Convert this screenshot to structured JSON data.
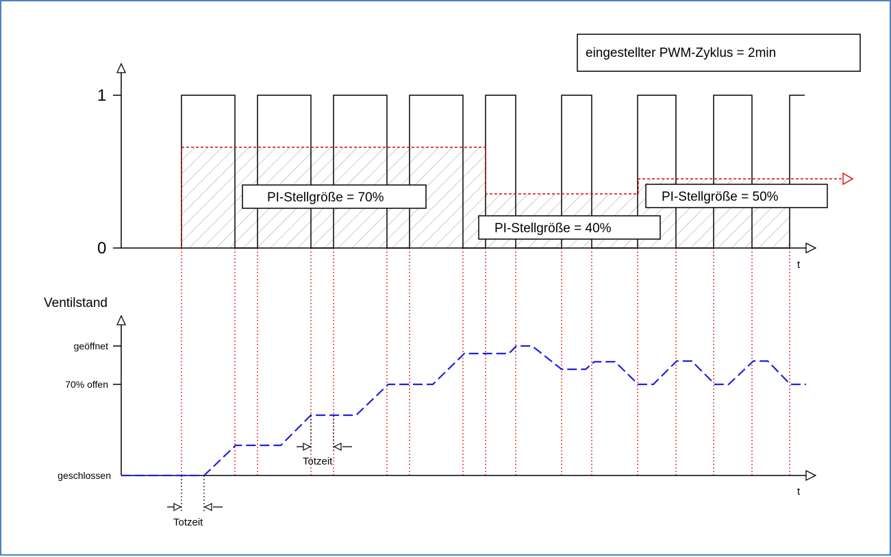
{
  "top_chart": {
    "y_label_1": "1",
    "y_label_0": "0",
    "x_label": "t",
    "setting_label": "eingestellter PWM-Zyklus = 2min",
    "pi_labels": [
      "PI-Stellgröße = 70%",
      "PI-Stellgröße = 40%",
      "PI-Stellgröße = 50%"
    ]
  },
  "bottom_chart": {
    "y_title": "Ventilstand",
    "y_ticks": [
      "geöffnet",
      "70% offen",
      "geschlossen"
    ],
    "x_label": "t",
    "dead_time_labels": [
      "Totzeit",
      "Totzeit"
    ]
  },
  "chart_data": {
    "type": "diagram",
    "pwm_cycle": "2min",
    "segments": [
      {
        "label": "PI-Stellgröße = 70%",
        "duty": 0.7,
        "cycles": 4
      },
      {
        "label": "PI-Stellgröße = 40%",
        "duty": 0.4,
        "cycles": 2
      },
      {
        "label": "PI-Stellgröße = 50%",
        "duty": 0.5,
        "cycles": 2
      }
    ]
  },
  "colors": {
    "frame": "#4f81bd",
    "pulse": "#000000",
    "stellgroesse": "#e00000",
    "valve": "#1f1fe0",
    "hatch": "#b0b0b0"
  }
}
